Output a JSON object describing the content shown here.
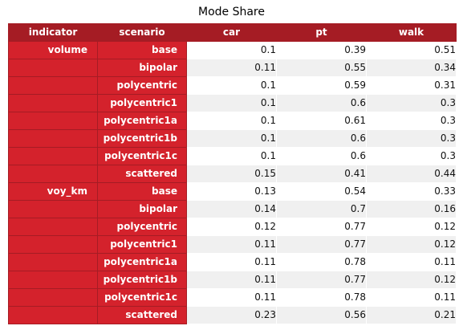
{
  "title": "Mode Share",
  "chart_data": {
    "type": "table",
    "title": "Mode Share",
    "index_headers": [
      "indicator",
      "scenario"
    ],
    "columns": [
      "car",
      "pt",
      "walk"
    ],
    "rows": [
      {
        "indicator": "volume",
        "scenario": "base",
        "values": [
          "0.1",
          "0.39",
          "0.51"
        ]
      },
      {
        "indicator": "",
        "scenario": "bipolar",
        "values": [
          "0.11",
          "0.55",
          "0.34"
        ]
      },
      {
        "indicator": "",
        "scenario": "polycentric",
        "values": [
          "0.1",
          "0.59",
          "0.31"
        ]
      },
      {
        "indicator": "",
        "scenario": "polycentric1",
        "values": [
          "0.1",
          "0.6",
          "0.3"
        ]
      },
      {
        "indicator": "",
        "scenario": "polycentric1a",
        "values": [
          "0.1",
          "0.61",
          "0.3"
        ]
      },
      {
        "indicator": "",
        "scenario": "polycentric1b",
        "values": [
          "0.1",
          "0.6",
          "0.3"
        ]
      },
      {
        "indicator": "",
        "scenario": "polycentric1c",
        "values": [
          "0.1",
          "0.6",
          "0.3"
        ]
      },
      {
        "indicator": "",
        "scenario": "scattered",
        "values": [
          "0.15",
          "0.41",
          "0.44"
        ]
      },
      {
        "indicator": "voy_km",
        "scenario": "base",
        "values": [
          "0.13",
          "0.54",
          "0.33"
        ]
      },
      {
        "indicator": "",
        "scenario": "bipolar",
        "values": [
          "0.14",
          "0.7",
          "0.16"
        ]
      },
      {
        "indicator": "",
        "scenario": "polycentric",
        "values": [
          "0.12",
          "0.77",
          "0.12"
        ]
      },
      {
        "indicator": "",
        "scenario": "polycentric1",
        "values": [
          "0.11",
          "0.77",
          "0.12"
        ]
      },
      {
        "indicator": "",
        "scenario": "polycentric1a",
        "values": [
          "0.11",
          "0.78",
          "0.11"
        ]
      },
      {
        "indicator": "",
        "scenario": "polycentric1b",
        "values": [
          "0.11",
          "0.77",
          "0.12"
        ]
      },
      {
        "indicator": "",
        "scenario": "polycentric1c",
        "values": [
          "0.11",
          "0.78",
          "0.11"
        ]
      },
      {
        "indicator": "",
        "scenario": "scattered",
        "values": [
          "0.23",
          "0.56",
          "0.21"
        ]
      }
    ]
  },
  "colors": {
    "header_bg": "#a51c24",
    "index_bg": "#d4222c",
    "index_text": "#ffffff",
    "row_odd": "#ffffff",
    "row_even": "#f0f0f0"
  }
}
